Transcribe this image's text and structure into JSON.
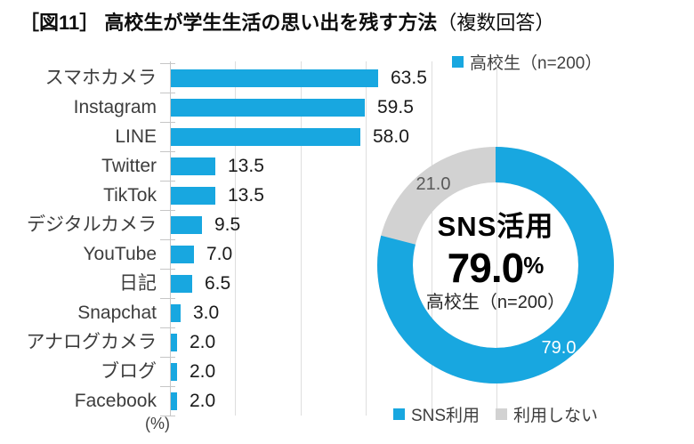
{
  "title": {
    "main": "［図11］ 高校生が学生生活の思い出を残す方法",
    "suffix": "（複数回答）"
  },
  "colors": {
    "blue": "#18A7E0",
    "gray": "#D2D2D2",
    "gridline": "#DEDEDE",
    "axis": "#C6C6C6"
  },
  "chart_data": [
    {
      "type": "bar",
      "orientation": "horizontal",
      "legend": "高校生（n=200）",
      "categories": [
        "スマホカメラ",
        "Instagram",
        "LINE",
        "Twitter",
        "TikTok",
        "デジタルカメラ",
        "YouTube",
        "日記",
        "Snapchat",
        "アナログカメラ",
        "ブログ",
        "Facebook"
      ],
      "values": [
        63.5,
        59.5,
        58.0,
        13.5,
        13.5,
        9.5,
        7.0,
        6.5,
        3.0,
        2.0,
        2.0,
        2.0
      ],
      "xlabel": "(%)",
      "xlim": [
        0,
        100
      ],
      "gridline_interval": 20,
      "grid": true,
      "bar_color": "#18A7E0"
    },
    {
      "type": "pie",
      "donut": true,
      "start_angle_deg": 0,
      "direction": "clockwise",
      "slices": [
        {
          "label": "SNS利用",
          "value": 79.0,
          "value_label": "79.0",
          "color": "#18A7E0"
        },
        {
          "label": "利用しない",
          "value": 21.0,
          "value_label": "21.0",
          "color": "#D2D2D2"
        }
      ],
      "center_title": "SNS活用",
      "center_value": "79.0",
      "center_unit": "%",
      "center_sub": "高校生（n=200）",
      "legend_position": "bottom"
    }
  ]
}
